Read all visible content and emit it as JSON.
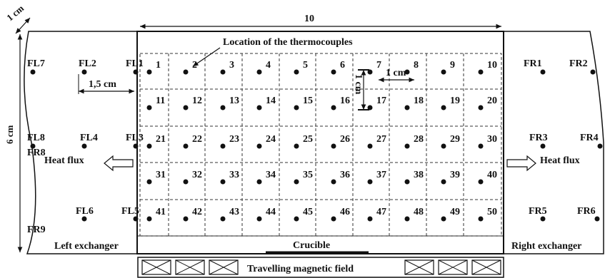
{
  "dimensions": {
    "width_label": "10",
    "height_label": "6 cm",
    "exchanger_width_label": "1 cm",
    "fl_spacing_label": "1,5 cm",
    "grid_h_spacing_label": "1 cm",
    "grid_v_spacing_label": "1 cm"
  },
  "annotations": {
    "thermocouples_label": "Location of the thermocouples",
    "heat_flux_left": "Heat flux",
    "heat_flux_right": "Heat flux",
    "left_exchanger": "Left exchanger",
    "right_exchanger": "Right exchanger",
    "crucible": "Crucible",
    "magnetic_field": "Travelling magnetic field"
  },
  "grid": {
    "rows": [
      [
        "1",
        "2",
        "3",
        "4",
        "5",
        "6",
        "7",
        "8",
        "9",
        "10"
      ],
      [
        "11",
        "12",
        "13",
        "14",
        "15",
        "16",
        "17",
        "18",
        "19",
        "20"
      ],
      [
        "21",
        "22",
        "23",
        "24",
        "25",
        "26",
        "27",
        "28",
        "29",
        "30"
      ],
      [
        "31",
        "32",
        "33",
        "34",
        "35",
        "36",
        "37",
        "38",
        "39",
        "40"
      ],
      [
        "41",
        "42",
        "43",
        "44",
        "45",
        "46",
        "47",
        "48",
        "49",
        "50"
      ]
    ]
  },
  "left_sensors": {
    "row1": [
      "FL7",
      "FL2",
      "FL1"
    ],
    "row3": [
      "FL8",
      "FL4",
      "FL3"
    ],
    "row3b": [
      "FR8"
    ],
    "row5": [
      "FL6",
      "FL5"
    ],
    "bottom": [
      "FR9"
    ]
  },
  "right_sensors": {
    "row1": [
      "FR1",
      "FR2"
    ],
    "row3": [
      "FR3",
      "FR4"
    ],
    "row5": [
      "FR5",
      "FR6"
    ]
  },
  "colors": {
    "ink": "#111111",
    "background": "#ffffff"
  }
}
